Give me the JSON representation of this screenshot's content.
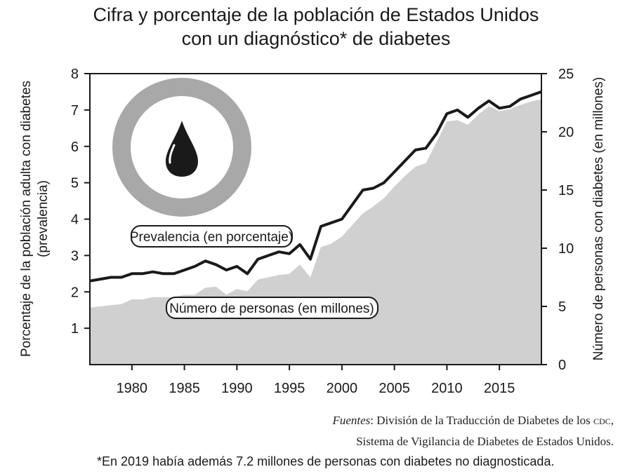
{
  "title_line1": "Cifra y porcentaje de la población de Estados Unidos",
  "title_line2": "con un diagnóstico* de diabetes",
  "icon": "blood-drop-icon",
  "sources": {
    "label": "Fuentes",
    "line1_rest": ": División de la Traducción de Diabetes de los ",
    "line1_org": "cdc",
    "line1_end": ",",
    "line2": "Sistema de Vigilancia de Diabetes de Estados Unidos."
  },
  "footnote": "*En 2019 había además 7.2 millones de personas con diabetes no diagnosticada.",
  "colors": {
    "line": "#1a1a1a",
    "area": "#d0d0d0",
    "ring": "#a8a8a8",
    "drop": "#1a1a1a"
  },
  "chart_data": {
    "type": "line",
    "ylabel_left": "Porcentaje de la población adulta con diabetes (prevalencia)",
    "ylabel_right": "Número de personas con diabetes (en millones)",
    "ylim_left": [
      0,
      8
    ],
    "ylim_right": [
      0,
      25
    ],
    "xlim": [
      1976,
      2019
    ],
    "x_ticks": [
      1980,
      1985,
      1990,
      1995,
      2000,
      2005,
      2010,
      2015
    ],
    "y_ticks_left": [
      1,
      2,
      3,
      4,
      5,
      6,
      7,
      8
    ],
    "y_ticks_right": [
      0,
      5,
      10,
      15,
      20,
      25
    ],
    "grid": false,
    "x": [
      1976,
      1977,
      1978,
      1979,
      1980,
      1981,
      1982,
      1983,
      1984,
      1985,
      1986,
      1987,
      1988,
      1989,
      1990,
      1991,
      1992,
      1993,
      1994,
      1995,
      1996,
      1997,
      1998,
      1999,
      2000,
      2001,
      2002,
      2003,
      2004,
      2005,
      2006,
      2007,
      2008,
      2009,
      2010,
      2011,
      2012,
      2013,
      2014,
      2015,
      2016,
      2017,
      2018,
      2019
    ],
    "series": [
      {
        "name": "Prevalencia (en porcentaje)",
        "axis": "left",
        "style": "line",
        "values": [
          2.3,
          2.35,
          2.4,
          2.4,
          2.5,
          2.5,
          2.55,
          2.5,
          2.5,
          2.6,
          2.7,
          2.85,
          2.75,
          2.6,
          2.7,
          2.5,
          2.9,
          3.0,
          3.1,
          3.05,
          3.3,
          2.9,
          3.8,
          3.9,
          4.0,
          4.4,
          4.8,
          4.85,
          5.0,
          5.3,
          5.6,
          5.9,
          5.95,
          6.35,
          6.9,
          7.0,
          6.8,
          7.05,
          7.25,
          7.05,
          7.1,
          7.3,
          7.4,
          7.5
        ]
      },
      {
        "name": "Número de personas (en millones)",
        "axis": "right",
        "style": "area",
        "values": [
          4.9,
          5.0,
          5.1,
          5.2,
          5.6,
          5.6,
          5.8,
          5.8,
          5.8,
          6.0,
          6.0,
          6.6,
          6.7,
          6.0,
          6.5,
          6.3,
          7.3,
          7.5,
          7.7,
          7.8,
          8.6,
          7.5,
          10.1,
          10.4,
          11.0,
          12.0,
          13.0,
          13.6,
          14.3,
          15.3,
          16.2,
          17.0,
          17.3,
          19.1,
          20.9,
          21.0,
          20.6,
          21.5,
          22.2,
          21.8,
          22.0,
          22.3,
          22.6,
          22.8
        ]
      }
    ]
  }
}
